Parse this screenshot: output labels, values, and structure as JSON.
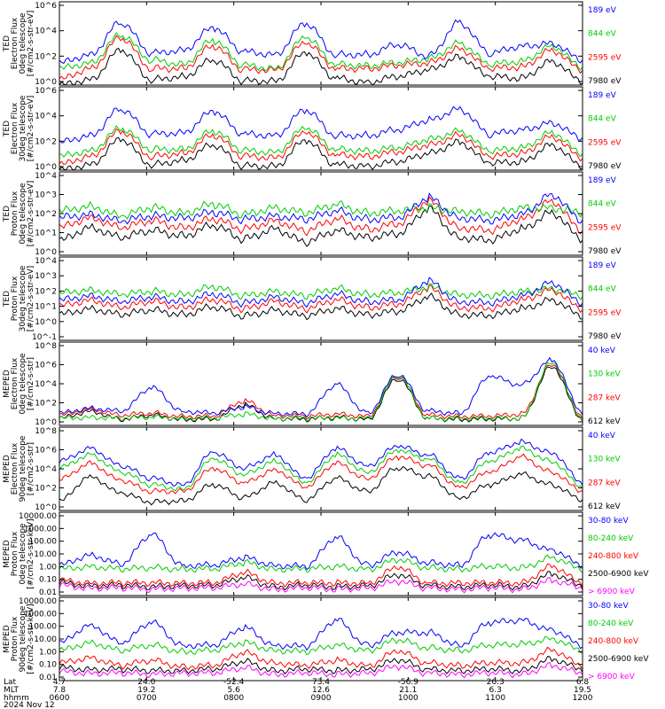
{
  "chart_data": [
    {
      "type": "line",
      "ylabel": [
        "TED",
        "Electron Flux",
        "0deg telescope",
        "[#/cm2-s-str-eV]"
      ],
      "yticks": [
        "10^6",
        "10^4",
        "10^2",
        "10^0"
      ],
      "ylog": [
        0,
        6
      ],
      "series": [
        {
          "name": "7980 eV",
          "color": "#000000",
          "values": [
            0,
            0.4,
            2.5,
            0.4,
            0.6,
            1.8,
            0.3,
            0.3,
            2.3,
            0.5,
            0.2,
            0.6,
            1.1,
            2.0,
            0.6,
            0.5,
            1.7,
            0.3
          ]
        },
        {
          "name": "2595 eV",
          "color": "#ff0000",
          "values": [
            0.4,
            1.2,
            3.4,
            1.2,
            1.2,
            2.8,
            1.1,
            1.1,
            3.0,
            1.2,
            1.2,
            1.4,
            1.6,
            2.6,
            1.2,
            1.3,
            2.5,
            1.1
          ]
        },
        {
          "name": "844 eV",
          "color": "#00cc00",
          "values": [
            1.2,
            1.6,
            3.6,
            1.8,
            1.5,
            3.2,
            1.4,
            1.2,
            3.4,
            1.5,
            1.4,
            1.6,
            1.9,
            3.0,
            1.5,
            1.7,
            2.8,
            1.3
          ]
        },
        {
          "name": "189 eV",
          "color": "#0000ff",
          "values": [
            1.6,
            2.2,
            4.5,
            2.3,
            2.5,
            4.1,
            2.4,
            2.2,
            4.4,
            2.2,
            2.2,
            2.9,
            2.1,
            4.5,
            2.3,
            2.8,
            3.0,
            1.8
          ]
        }
      ]
    },
    {
      "type": "line",
      "ylabel": [
        "TED",
        "Electron Flux",
        "30deg telescope",
        "[#/cm2-s-str-eV]"
      ],
      "yticks": [
        "10^6",
        "10^4",
        "10^2",
        "10^0"
      ],
      "ylog": [
        0,
        6
      ],
      "series": [
        {
          "name": "7980 eV",
          "color": "#000000",
          "values": [
            0,
            0.4,
            2.2,
            0.4,
            0.7,
            1.8,
            0.3,
            0.3,
            2.1,
            0.4,
            0.3,
            0.6,
            1.2,
            2.0,
            0.5,
            0.6,
            1.8,
            0.3
          ]
        },
        {
          "name": "2595 eV",
          "color": "#ff0000",
          "values": [
            0.4,
            1.0,
            2.8,
            1.0,
            1.2,
            2.5,
            1.0,
            0.9,
            2.7,
            1.1,
            1.0,
            1.3,
            1.8,
            2.5,
            1.0,
            1.2,
            2.4,
            0.9
          ]
        },
        {
          "name": "844 eV",
          "color": "#00cc00",
          "values": [
            1.0,
            1.4,
            3.0,
            1.5,
            1.5,
            2.8,
            1.4,
            1.3,
            3.0,
            1.5,
            1.4,
            1.6,
            2.2,
            2.8,
            1.4,
            1.6,
            2.7,
            1.2
          ]
        },
        {
          "name": "189 eV",
          "color": "#0000ff",
          "values": [
            2.0,
            2.5,
            4.4,
            2.6,
            2.7,
            4.2,
            2.6,
            2.5,
            4.3,
            2.5,
            2.5,
            2.9,
            3.6,
            4.4,
            2.6,
            2.9,
            3.4,
            2.3
          ]
        }
      ]
    },
    {
      "type": "line",
      "ylabel": [
        "TED",
        "Proton Flux",
        "0deg telescope",
        "[#/cm2-s-str-eV]"
      ],
      "yticks": [
        "10^4",
        "10^3",
        "10^2",
        "10^1",
        "10^0"
      ],
      "ylog": [
        -0.3,
        4.8
      ],
      "series": [
        {
          "name": "7980 eV",
          "color": "#000000",
          "values": [
            0.6,
            1.4,
            0.8,
            1.2,
            0.9,
            1.5,
            0.7,
            1.3,
            0.5,
            1.2,
            0.8,
            1.0,
            2.5,
            0.8,
            0.6,
            1.3,
            2.3,
            0.7
          ]
        },
        {
          "name": "2595 eV",
          "color": "#ff0000",
          "values": [
            1.4,
            2.0,
            1.4,
            1.8,
            1.4,
            1.9,
            1.3,
            1.8,
            1.2,
            1.9,
            1.3,
            1.6,
            3.0,
            1.4,
            1.2,
            1.9,
            3.0,
            1.2
          ]
        },
        {
          "name": "844 eV",
          "color": "#00cc00",
          "values": [
            2.4,
            2.7,
            2.1,
            2.6,
            2.3,
            2.8,
            2.2,
            2.6,
            2.3,
            2.8,
            2.3,
            2.4,
            2.6,
            2.4,
            2.2,
            2.6,
            2.6,
            2.3
          ]
        },
        {
          "name": "189 eV",
          "color": "#0000ff",
          "values": [
            2.0,
            2.2,
            1.8,
            2.1,
            2.0,
            2.3,
            1.9,
            2.1,
            1.9,
            2.4,
            1.9,
            2.0,
            3.2,
            2.0,
            1.8,
            2.2,
            3.4,
            1.8
          ]
        }
      ]
    },
    {
      "type": "line",
      "ylabel": [
        "TED",
        "Proton Flux",
        "30deg telescope",
        "[#/cm2-s-str-eV]"
      ],
      "yticks": [
        "10^4",
        "10^3",
        "10^2",
        "10^1",
        "10^0",
        "10^-1"
      ],
      "ylog": [
        -1.2,
        4.6
      ],
      "series": [
        {
          "name": "7980 eV",
          "color": "#000000",
          "values": [
            0.6,
            1.0,
            0.6,
            0.9,
            0.6,
            1.1,
            0.5,
            0.9,
            0.5,
            1.0,
            0.6,
            0.8,
            1.8,
            0.6,
            0.5,
            1.0,
            1.6,
            0.5
          ]
        },
        {
          "name": "2595 eV",
          "color": "#ff0000",
          "values": [
            1.2,
            1.6,
            1.1,
            1.5,
            1.1,
            1.6,
            1.0,
            1.5,
            1.0,
            1.6,
            1.1,
            1.3,
            2.4,
            1.1,
            1.0,
            1.6,
            2.3,
            1.0
          ]
        },
        {
          "name": "844 eV",
          "color": "#00cc00",
          "values": [
            2.1,
            2.3,
            2.0,
            2.2,
            2.0,
            2.5,
            1.9,
            2.2,
            1.9,
            2.4,
            2.0,
            2.1,
            2.5,
            2.0,
            1.9,
            2.2,
            2.4,
            1.9
          ]
        },
        {
          "name": "189 eV",
          "color": "#0000ff",
          "values": [
            1.6,
            1.9,
            1.5,
            1.8,
            1.5,
            2.0,
            1.4,
            1.8,
            1.4,
            2.0,
            1.5,
            1.6,
            2.9,
            1.5,
            1.4,
            1.9,
            2.8,
            1.4
          ]
        }
      ]
    },
    {
      "type": "line",
      "ylabel": [
        "MEPED",
        "Electron Flux",
        "0deg telescope",
        "[#/cm2-s-str]"
      ],
      "yticks": [
        "10^8",
        "10^6",
        "10^4",
        "10^2",
        "10^0"
      ],
      "ylog": [
        -0.2,
        8
      ],
      "series": [
        {
          "name": "612 keV",
          "color": "#000000",
          "values": [
            0.5,
            1.2,
            0.4,
            0.8,
            0.4,
            0.4,
            1.8,
            0.5,
            0.4,
            0.6,
            0.4,
            4.4,
            0.5,
            0.4,
            0.4,
            0.5,
            5.6,
            0.4
          ]
        },
        {
          "name": "287 keV",
          "color": "#ff0000",
          "values": [
            0.8,
            1.4,
            0.8,
            1.0,
            0.7,
            0.7,
            2.2,
            0.8,
            0.7,
            0.9,
            0.7,
            4.6,
            0.8,
            0.7,
            0.7,
            0.9,
            5.8,
            0.7
          ]
        },
        {
          "name": "130 keV",
          "color": "#00cc00",
          "values": [
            0.5,
            0.6,
            0.5,
            0.6,
            0.5,
            0.5,
            0.9,
            0.5,
            0.5,
            0.5,
            0.5,
            4.7,
            0.5,
            0.5,
            0.5,
            0.5,
            6.0,
            0.5
          ]
        },
        {
          "name": "40 keV",
          "color": "#0000ff",
          "values": [
            1.0,
            1.5,
            1.2,
            3.5,
            1.2,
            1.0,
            1.6,
            1.0,
            0.9,
            3.8,
            1.0,
            4.8,
            1.2,
            1.0,
            4.6,
            3.8,
            6.2,
            1.1
          ]
        }
      ]
    },
    {
      "type": "line",
      "ylabel": [
        "MEPED",
        "Electron Flux",
        "90deg telescope",
        "[#/cm2-s-str]"
      ],
      "yticks": [
        "10^8",
        "10^6",
        "10^4",
        "10^2",
        "10^0"
      ],
      "ylog": [
        0.6,
        8.4
      ],
      "series": [
        {
          "name": "612 keV",
          "color": "#000000",
          "values": [
            1.5,
            3.8,
            2.2,
            1.4,
            1.5,
            3.0,
            1.8,
            3.2,
            1.6,
            3.6,
            2.4,
            4.6,
            3.8,
            1.8,
            3.0,
            4.0,
            3.0,
            1.6
          ]
        },
        {
          "name": "287 keV",
          "color": "#ff0000",
          "values": [
            3.5,
            5.0,
            3.4,
            2.4,
            2.4,
            4.5,
            3.2,
            4.4,
            2.8,
            5.0,
            3.6,
            5.6,
            4.8,
            2.8,
            4.2,
            5.6,
            4.2,
            2.4
          ]
        },
        {
          "name": "130 keV",
          "color": "#00cc00",
          "values": [
            4.6,
            5.8,
            4.2,
            3.0,
            2.6,
            5.4,
            4.0,
            5.2,
            3.2,
            5.8,
            4.2,
            6.2,
            5.4,
            3.2,
            5.2,
            6.4,
            5.2,
            2.8
          ]
        },
        {
          "name": "40 keV",
          "color": "#0000ff",
          "values": [
            5.2,
            6.4,
            4.8,
            3.6,
            3.0,
            6.0,
            4.6,
            5.8,
            3.6,
            6.4,
            4.8,
            6.6,
            5.8,
            3.6,
            6.0,
            7.0,
            6.0,
            3.2
          ]
        }
      ]
    },
    {
      "type": "line",
      "ylabel": [
        "MEPED",
        "Proton Flux",
        "0deg telescope",
        "[#/cm2-s-str-keV]"
      ],
      "yticks": [
        "10000.00",
        "1000.00",
        "100.00",
        "10.00",
        "1.00",
        "0.10",
        "0.01"
      ],
      "ylog": [
        -2,
        4.6
      ],
      "series": [
        {
          "name": "> 6900 keV",
          "color": "#ff00ff",
          "values": [
            -1.2,
            -1.4,
            -1.4,
            -1.5,
            -1.4,
            -1.4,
            -1.1,
            -1.5,
            -1.4,
            -1.5,
            -1.4,
            -0.9,
            -1.4,
            -1.5,
            -1.4,
            -1.5,
            -0.8,
            -1.4
          ]
        },
        {
          "name": "2500-6900 keV",
          "color": "#000000",
          "values": [
            -1.0,
            -1.2,
            -1.2,
            -1.3,
            -1.2,
            -1.2,
            -0.6,
            -1.3,
            -1.2,
            -1.3,
            -1.2,
            -0.4,
            -1.2,
            -1.3,
            -1.2,
            -1.3,
            -0.3,
            -1.2
          ]
        },
        {
          "name": "240-800 keV",
          "color": "#ff0000",
          "values": [
            -0.8,
            -1.0,
            -1.0,
            -1.0,
            -1.0,
            -1.0,
            -0.2,
            -1.0,
            -1.0,
            -1.0,
            -1.0,
            0.2,
            -1.0,
            -1.0,
            -1.0,
            -1.0,
            0.3,
            -1.0
          ]
        },
        {
          "name": "80-240 keV",
          "color": "#00cc00",
          "values": [
            0.1,
            0.3,
            0.1,
            0.2,
            0.1,
            0.1,
            0.6,
            0.1,
            0.1,
            0.3,
            0.1,
            0.8,
            0.2,
            0.1,
            0.3,
            0.2,
            1.0,
            0.1
          ]
        },
        {
          "name": "30-80 keV",
          "color": "#0000ff",
          "values": [
            0.4,
            1.2,
            0.5,
            2.8,
            0.4,
            0.4,
            1.0,
            0.4,
            0.3,
            2.6,
            0.4,
            1.4,
            0.6,
            0.4,
            2.8,
            2.4,
            1.6,
            0.4
          ]
        }
      ]
    },
    {
      "type": "line",
      "ylabel": [
        "MEPED",
        "Proton Flux",
        "90deg telescope",
        "[#/cm2-s-str-keV]"
      ],
      "yticks": [
        "10000.00",
        "1000.00",
        "100.00",
        "10.00",
        "1.00",
        "0.10",
        "0.01"
      ],
      "ylog": [
        -2,
        4.6
      ],
      "series": [
        {
          "name": "> 6900 keV",
          "color": "#ff00ff",
          "values": [
            -1.3,
            -1.4,
            -1.4,
            -1.5,
            -1.4,
            -1.4,
            -1.0,
            -1.5,
            -1.4,
            -1.5,
            -1.4,
            -0.9,
            -1.4,
            -1.5,
            -1.4,
            -1.5,
            -0.8,
            -1.4
          ]
        },
        {
          "name": "2500-6900 keV",
          "color": "#000000",
          "values": [
            -1.0,
            -1.1,
            -1.1,
            -1.2,
            -1.2,
            -1.1,
            -0.5,
            -1.2,
            -1.1,
            -1.2,
            -1.1,
            -0.4,
            -1.1,
            -1.2,
            -1.1,
            -1.2,
            -0.3,
            -1.1
          ]
        },
        {
          "name": "240-800 keV",
          "color": "#ff0000",
          "values": [
            -0.6,
            -0.2,
            -0.8,
            -0.4,
            -0.9,
            -0.8,
            0.2,
            -0.6,
            -0.8,
            -0.4,
            -0.8,
            0.3,
            -0.6,
            -0.8,
            -0.6,
            -0.6,
            0.4,
            -0.8
          ]
        },
        {
          "name": "80-240 keV",
          "color": "#00cc00",
          "values": [
            0.4,
            1.0,
            0.4,
            0.8,
            0.3,
            0.4,
            1.0,
            0.4,
            0.3,
            0.8,
            0.4,
            1.2,
            0.6,
            0.4,
            0.8,
            0.9,
            1.3,
            0.4
          ]
        },
        {
          "name": "30-80 keV",
          "color": "#0000ff",
          "values": [
            1.0,
            2.4,
            1.0,
            2.6,
            0.8,
            0.8,
            2.2,
            0.8,
            0.7,
            2.8,
            0.8,
            1.8,
            1.8,
            0.8,
            2.6,
            2.8,
            2.0,
            0.8
          ]
        }
      ]
    }
  ],
  "xaxis": {
    "rows": [
      {
        "name": "Lat",
        "values": [
          "4.7",
          "24.0",
          "-52.4",
          "73.4",
          "-56.9",
          "26.3",
          "6.8"
        ]
      },
      {
        "name": "MLT",
        "values": [
          "7.8",
          "19.2",
          "5.6",
          "12.6",
          "21.1",
          "6.3",
          "19.5"
        ]
      },
      {
        "name": "hhmm",
        "values": [
          "0600",
          "0700",
          "0800",
          "0900",
          "1000",
          "1100",
          "1200"
        ]
      }
    ],
    "date": "2024 Nov 12"
  }
}
